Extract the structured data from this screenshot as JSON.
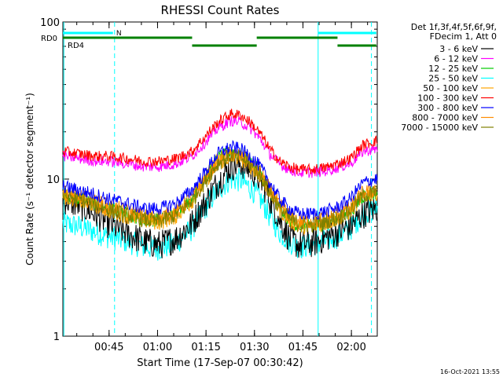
{
  "chart_data": {
    "type": "line",
    "title": "RHESSI Count Rates",
    "xlabel": "Start Time (17-Sep-07 00:30:42)",
    "ylabel": "Count Rate (s⁻¹ detector segment⁻¹)",
    "yscale": "log",
    "ylim": [
      1,
      100
    ],
    "xlim": [
      "00:30:42",
      "02:08:00"
    ],
    "x_ticks": [
      "00:45",
      "01:00",
      "01:15",
      "01:30",
      "01:45",
      "02:00"
    ],
    "y_ticks": [
      "1",
      "10",
      "100"
    ],
    "timestamp": "16-Oct-2021 13:55",
    "legend_header": [
      "Det 1f,3f,4f,5f,6f,9f,",
      "FDecim 1, Att 0"
    ],
    "x_minutes": [
      0,
      5,
      10,
      14,
      20,
      25,
      30,
      35,
      40,
      44,
      48,
      52,
      55,
      58,
      61,
      64,
      67,
      70,
      73,
      77,
      81,
      85,
      89,
      93,
      97
    ],
    "series": [
      {
        "name": "3 - 6 keV",
        "color": "#000000",
        "values": [
          7.5,
          6.8,
          6.0,
          5.2,
          4.5,
          4.0,
          3.8,
          4.2,
          5.2,
          7.0,
          9.5,
          12.0,
          12.5,
          11.5,
          10.0,
          7.5,
          5.5,
          4.2,
          3.8,
          3.9,
          4.2,
          4.6,
          5.0,
          6.0,
          6.5
        ]
      },
      {
        "name": "6 - 12 keV",
        "color": "#ff00ff",
        "values": [
          14.0,
          13.5,
          13.0,
          13.0,
          12.5,
          12.0,
          12.0,
          12.5,
          14.0,
          17.0,
          21.0,
          23.5,
          23.0,
          21.0,
          18.0,
          14.5,
          12.5,
          11.5,
          11.0,
          11.0,
          11.2,
          11.8,
          12.5,
          15.0,
          15.5
        ]
      },
      {
        "name": "12 - 25 keV",
        "color": "#00cc00",
        "values": [
          8.0,
          7.5,
          7.0,
          6.5,
          6.0,
          5.5,
          5.5,
          6.0,
          7.5,
          10.0,
          13.5,
          15.0,
          14.5,
          13.0,
          11.0,
          8.5,
          6.5,
          5.5,
          5.0,
          5.0,
          5.2,
          5.6,
          6.2,
          7.8,
          8.2
        ]
      },
      {
        "name": "25 - 50 keV",
        "color": "#00ffff",
        "values": [
          5.2,
          5.0,
          4.6,
          4.3,
          4.0,
          3.7,
          3.6,
          3.9,
          4.8,
          6.5,
          8.5,
          10.0,
          9.8,
          8.8,
          7.5,
          5.8,
          4.6,
          4.0,
          3.7,
          3.8,
          4.0,
          4.3,
          4.8,
          6.0,
          6.5
        ]
      },
      {
        "name": "50 - 100 keV",
        "color": "#ffa500",
        "values": [
          7.8,
          7.3,
          6.8,
          6.3,
          5.8,
          5.4,
          5.3,
          5.8,
          7.2,
          9.5,
          12.5,
          14.0,
          13.5,
          12.2,
          10.5,
          8.2,
          6.4,
          5.5,
          5.0,
          5.0,
          5.2,
          5.6,
          6.2,
          7.8,
          8.2
        ]
      },
      {
        "name": "100 - 300 keV",
        "color": "#ff0000",
        "values": [
          15.0,
          14.5,
          14.0,
          14.0,
          13.5,
          13.0,
          13.0,
          13.5,
          15.0,
          18.5,
          23.0,
          26.0,
          25.5,
          23.0,
          19.5,
          15.5,
          13.0,
          12.0,
          11.5,
          11.5,
          11.8,
          12.5,
          13.5,
          16.5,
          17.5
        ]
      },
      {
        "name": "300 - 800 keV",
        "color": "#0000ff",
        "values": [
          9.0,
          8.5,
          8.0,
          7.5,
          7.0,
          6.5,
          6.5,
          7.0,
          8.5,
          11.0,
          14.5,
          16.0,
          15.5,
          14.0,
          12.0,
          9.5,
          7.5,
          6.5,
          6.0,
          6.0,
          6.2,
          6.6,
          7.5,
          9.5,
          10.0
        ]
      },
      {
        "name": "800 - 7000 keV",
        "color": "#ff8c00",
        "values": [
          8.2,
          7.7,
          7.2,
          6.7,
          6.2,
          5.8,
          5.7,
          6.2,
          7.6,
          10.0,
          13.0,
          14.5,
          14.0,
          12.6,
          10.8,
          8.6,
          6.8,
          5.9,
          5.4,
          5.4,
          5.6,
          6.0,
          6.6,
          8.2,
          8.6
        ]
      },
      {
        "name": "7000 - 15000 keV",
        "color": "#808000",
        "values": [
          7.9,
          7.4,
          6.9,
          6.4,
          5.9,
          5.5,
          5.4,
          5.9,
          7.3,
          9.6,
          12.6,
          14.2,
          13.7,
          12.3,
          10.6,
          8.3,
          6.5,
          5.6,
          5.1,
          5.1,
          5.3,
          5.7,
          6.3,
          7.9,
          8.3
        ]
      }
    ],
    "annotations": {
      "rd0_label": "RD0",
      "rd4_label": "RD4",
      "n_label": "N",
      "n_color": "#00ffff",
      "rd_color": "#008000"
    }
  }
}
